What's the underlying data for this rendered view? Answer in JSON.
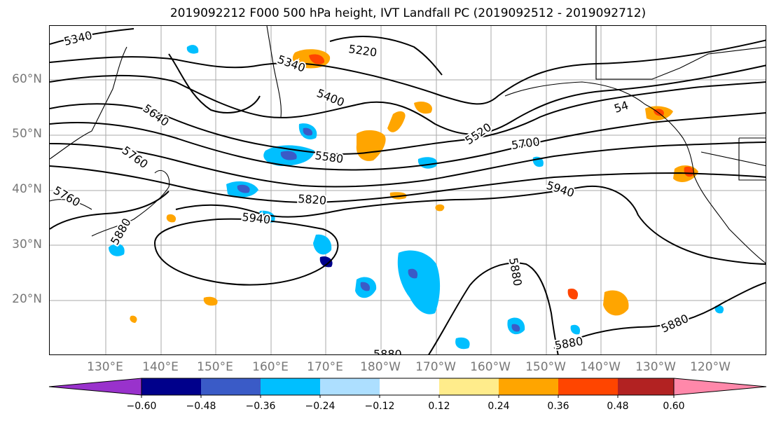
{
  "title": "2019092212 F000 500 hPa height, IVT Landfall PC (2019092512 - 2019092712)",
  "lat_labels": [
    "60°N",
    "50°N",
    "40°N",
    "30°N",
    "20°N"
  ],
  "lon_labels": [
    "130°E",
    "140°E",
    "150°E",
    "160°E",
    "170°E",
    "180°W",
    "170°W",
    "160°W",
    "150°W",
    "140°W",
    "130°W",
    "120°W"
  ],
  "contour_labels": [
    "5340",
    "5220",
    "5340",
    "5400",
    "5640",
    "5760",
    "5580",
    "5520",
    "5700",
    "5760",
    "5820",
    "5940",
    "5880",
    "5940",
    "5880",
    "5880",
    "5880",
    "5880",
    "54"
  ],
  "colorbar": {
    "ticks": [
      "−0.60",
      "−0.48",
      "−0.36",
      "−0.24",
      "−0.12",
      "0.12",
      "0.24",
      "0.36",
      "0.48",
      "0.60"
    ],
    "colors": [
      "#9932CC",
      "#00008B",
      "#3A5BC7",
      "#00BFFF",
      "#ADDFFF",
      "#FFFFFF",
      "#FFEC8B",
      "#FFA500",
      "#FF4500",
      "#B22222",
      "#FF88AA"
    ]
  }
}
